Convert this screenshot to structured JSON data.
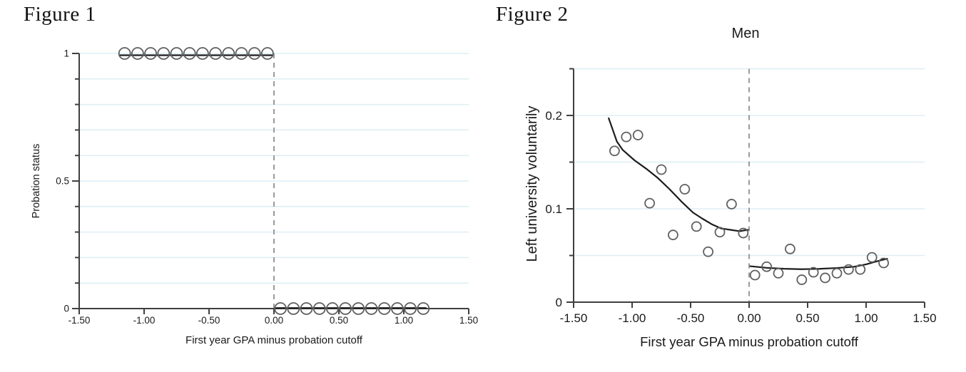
{
  "figures": [
    {
      "heading": "Figure 1"
    },
    {
      "heading": "Figure 2"
    }
  ],
  "colors": {
    "background": "#ffffff",
    "grid": "#ddeef5",
    "axis": "#3f3f3f",
    "cutoff": "#9a9a9a",
    "fit": "#1c1c1c",
    "point": "#5f5f5f",
    "text": "#1a1a1a"
  },
  "chart_data": [
    {
      "type": "scatter",
      "title": "",
      "xlabel": "First year GPA minus probation cutoff",
      "ylabel": "Probation status",
      "xlim": [
        -1.5,
        1.5
      ],
      "ylim": [
        0,
        1
      ],
      "grid": "horizontal",
      "legend": "none",
      "cutoff_x": 0,
      "xticks": [
        {
          "v": -1.5,
          "label": "-1.50"
        },
        {
          "v": -1.0,
          "label": "-1.00"
        },
        {
          "v": -0.5,
          "label": "-0.50"
        },
        {
          "v": 0.0,
          "label": "0.00"
        },
        {
          "v": 0.5,
          "label": "0.50"
        },
        {
          "v": 1.0,
          "label": "1.00"
        },
        {
          "v": 1.5,
          "label": "1.50"
        }
      ],
      "yticks_major": [
        {
          "v": 0,
          "label": "0"
        },
        {
          "v": 0.5,
          "label": "0.5"
        },
        {
          "v": 1,
          "label": "1"
        }
      ],
      "yticks_minor": [
        0.1,
        0.2,
        0.3,
        0.4,
        0.6,
        0.7,
        0.8,
        0.9
      ],
      "grid_y": [
        0.1,
        0.2,
        0.3,
        0.4,
        0.5,
        0.6,
        0.7,
        0.8,
        0.9,
        1.0
      ],
      "points": [
        [
          -1.15,
          1
        ],
        [
          -1.05,
          1
        ],
        [
          -0.95,
          1
        ],
        [
          -0.85,
          1
        ],
        [
          -0.75,
          1
        ],
        [
          -0.65,
          1
        ],
        [
          -0.55,
          1
        ],
        [
          -0.45,
          1
        ],
        [
          -0.35,
          1
        ],
        [
          -0.25,
          1
        ],
        [
          -0.15,
          1
        ],
        [
          -0.05,
          1
        ],
        [
          0.05,
          0
        ],
        [
          0.15,
          0
        ],
        [
          0.25,
          0
        ],
        [
          0.35,
          0
        ],
        [
          0.45,
          0
        ],
        [
          0.55,
          0
        ],
        [
          0.65,
          0
        ],
        [
          0.75,
          0
        ],
        [
          0.85,
          0
        ],
        [
          0.95,
          0
        ],
        [
          1.05,
          0
        ],
        [
          1.15,
          0
        ]
      ],
      "fit_lines": [
        [
          [
            -1.19,
            0.993
          ],
          [
            -0.015,
            0.993
          ]
        ],
        [
          [
            0.015,
            0.002
          ],
          [
            1.17,
            0.002
          ]
        ]
      ]
    },
    {
      "type": "scatter",
      "title": "Men",
      "xlabel": "First year GPA minus probation cutoff",
      "ylabel": "Left university voluntarily",
      "xlim": [
        -1.5,
        1.5
      ],
      "ylim": [
        0,
        0.25
      ],
      "grid": "horizontal",
      "legend": "none",
      "cutoff_x": 0,
      "xticks": [
        {
          "v": -1.5,
          "label": "-1.50"
        },
        {
          "v": -1.0,
          "label": "-1.00"
        },
        {
          "v": -0.5,
          "label": "-0.50"
        },
        {
          "v": 0.0,
          "label": "0.00"
        },
        {
          "v": 0.5,
          "label": "0.50"
        },
        {
          "v": 1.0,
          "label": "1.00"
        },
        {
          "v": 1.5,
          "label": "1.50"
        }
      ],
      "yticks_major": [
        {
          "v": 0,
          "label": "0"
        },
        {
          "v": 0.1,
          "label": "0.1"
        },
        {
          "v": 0.2,
          "label": "0.2"
        }
      ],
      "yticks_minor": [
        0.05,
        0.15,
        0.25
      ],
      "grid_y": [
        0.05,
        0.1,
        0.15,
        0.2,
        0.25
      ],
      "points": [
        [
          -1.15,
          0.162
        ],
        [
          -1.05,
          0.177
        ],
        [
          -0.95,
          0.179
        ],
        [
          -0.85,
          0.106
        ],
        [
          -0.75,
          0.142
        ],
        [
          -0.65,
          0.072
        ],
        [
          -0.55,
          0.121
        ],
        [
          -0.45,
          0.081
        ],
        [
          -0.35,
          0.054
        ],
        [
          -0.25,
          0.075
        ],
        [
          -0.15,
          0.105
        ],
        [
          -0.05,
          0.074
        ],
        [
          0.05,
          0.029
        ],
        [
          0.15,
          0.038
        ],
        [
          0.25,
          0.031
        ],
        [
          0.35,
          0.057
        ],
        [
          0.45,
          0.024
        ],
        [
          0.55,
          0.032
        ],
        [
          0.65,
          0.026
        ],
        [
          0.75,
          0.031
        ],
        [
          0.85,
          0.035
        ],
        [
          0.95,
          0.035
        ],
        [
          1.05,
          0.048
        ],
        [
          1.15,
          0.042
        ]
      ],
      "fit_lines": [
        [
          [
            -1.2,
            0.197
          ],
          [
            -1.13,
            0.172
          ],
          [
            -1.08,
            0.163
          ],
          [
            -0.98,
            0.152
          ],
          [
            -0.88,
            0.143
          ],
          [
            -0.78,
            0.133
          ],
          [
            -0.68,
            0.121
          ],
          [
            -0.58,
            0.108
          ],
          [
            -0.48,
            0.096
          ],
          [
            -0.4,
            0.0895
          ],
          [
            -0.32,
            0.0835
          ],
          [
            -0.24,
            0.079
          ],
          [
            -0.16,
            0.0775
          ],
          [
            -0.08,
            0.076
          ],
          [
            -0.01,
            0.0775
          ]
        ],
        [
          [
            0.01,
            0.0385
          ],
          [
            0.15,
            0.0368
          ],
          [
            0.3,
            0.0358
          ],
          [
            0.45,
            0.0353
          ],
          [
            0.6,
            0.0357
          ],
          [
            0.75,
            0.0366
          ],
          [
            0.9,
            0.038
          ],
          [
            1.0,
            0.0405
          ],
          [
            1.1,
            0.044
          ],
          [
            1.18,
            0.0465
          ]
        ]
      ]
    }
  ]
}
